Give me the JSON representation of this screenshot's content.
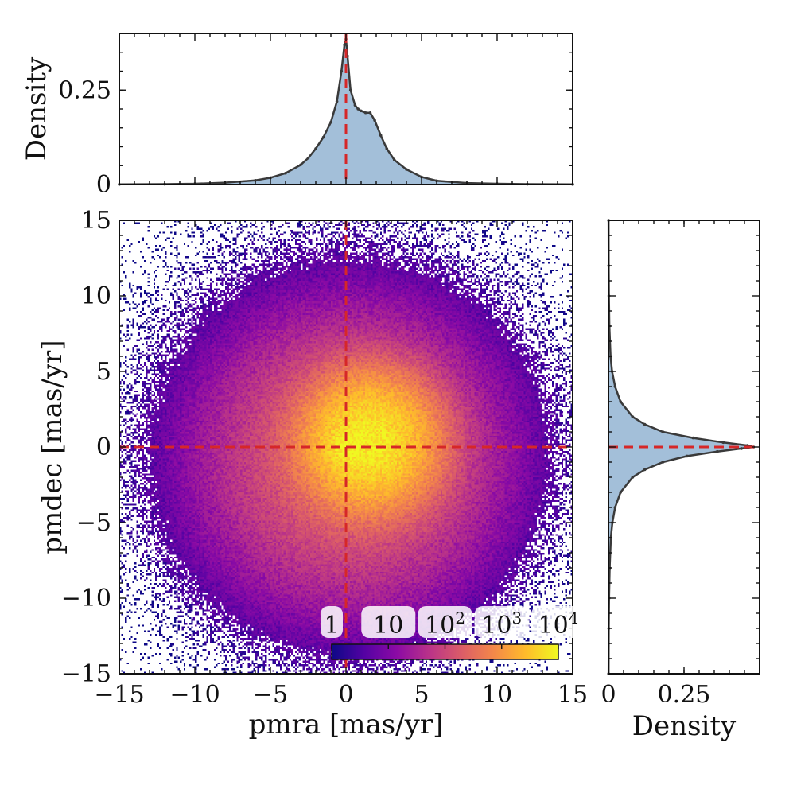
{
  "chart_data": [
    {
      "id": "joint",
      "type": "heatmap",
      "description_scale": "log-count 2D histogram",
      "xlabel": "pmra [mas/yr]",
      "ylabel": "pmdec [mas/yr]",
      "xlim": [
        -15,
        15
      ],
      "ylim": [
        -15,
        15
      ],
      "xticks": [
        -15,
        -10,
        -5,
        0,
        5,
        10,
        15
      ],
      "yticks": [
        -15,
        -10,
        -5,
        0,
        5,
        10,
        15
      ],
      "xtick_labels": [
        "−15",
        "−10",
        "−5",
        "0",
        "5",
        "10",
        "15"
      ],
      "ytick_labels": [
        "−15",
        "−10",
        "−5",
        "0",
        "5",
        "10",
        "15"
      ],
      "reference_lines": {
        "x": 0,
        "y": 0,
        "color": "#d62728"
      },
      "density_components": [
        {
          "center": [
            0,
            0
          ],
          "sigma": 0.6,
          "peak_log10": 3.6
        },
        {
          "center": [
            1.5,
            0.3
          ],
          "sigma": 2.0,
          "peak_log10": 3.9
        },
        {
          "center": [
            0.3,
            -0.8
          ],
          "sigma": 4.4,
          "peak_log10": 2.4
        },
        {
          "center": [
            0,
            0
          ],
          "sigma": 8.0,
          "peak_log10": 0.9
        }
      ],
      "colorbar": {
        "colormap": "plasma",
        "scale": "log",
        "range": [
          1,
          10000
        ],
        "tick_values": [
          1,
          10,
          100,
          1000,
          10000
        ],
        "tick_labels": [
          {
            "base": "1",
            "exp": ""
          },
          {
            "base": "10",
            "exp": ""
          },
          {
            "base": "10",
            "exp": "2"
          },
          {
            "base": "10",
            "exp": "3"
          },
          {
            "base": "10",
            "exp": "4"
          }
        ]
      },
      "colors": {
        "low": "#0d0887",
        "mid": "#cc4778",
        "high": "#f0f921"
      }
    },
    {
      "id": "top-marginal",
      "type": "area",
      "xlabel": "",
      "ylabel": "Density",
      "xlim": [
        -15,
        15
      ],
      "ylim": [
        0,
        0.4
      ],
      "yticks": [
        0,
        0.25
      ],
      "ytick_labels": [
        "0",
        "0.25"
      ],
      "x": [
        -15,
        -12,
        -10,
        -8,
        -6,
        -5,
        -4,
        -3,
        -2.5,
        -2,
        -1.5,
        -1,
        -0.6,
        -0.3,
        -0.1,
        0,
        0.1,
        0.3,
        0.6,
        0.8,
        1.0,
        1.3,
        1.6,
        1.9,
        2.3,
        2.7,
        3.2,
        4,
        5,
        6,
        8,
        10,
        12,
        15
      ],
      "values": [
        0.0005,
        0.001,
        0.002,
        0.005,
        0.011,
        0.018,
        0.03,
        0.052,
        0.07,
        0.095,
        0.125,
        0.165,
        0.22,
        0.3,
        0.37,
        0.385,
        0.34,
        0.25,
        0.21,
        0.2,
        0.195,
        0.19,
        0.19,
        0.17,
        0.13,
        0.095,
        0.065,
        0.04,
        0.02,
        0.01,
        0.004,
        0.002,
        0.001,
        0.0005
      ],
      "fill_color": "#a3bfd9",
      "line_color": "#3a3a3a",
      "reference_line_x": 0
    },
    {
      "id": "right-marginal",
      "type": "area",
      "orientation": "horizontal",
      "xlabel": "Density",
      "ylabel": "",
      "xlim": [
        0,
        0.5
      ],
      "ylim": [
        -15,
        15
      ],
      "xticks": [
        0,
        0.25
      ],
      "xtick_labels": [
        "0",
        "0.25"
      ],
      "y": [
        -15,
        -12,
        -10,
        -8,
        -6,
        -5,
        -4,
        -3,
        -2,
        -1.5,
        -1,
        -0.6,
        -0.3,
        -0.1,
        0,
        0.1,
        0.3,
        0.6,
        1,
        1.5,
        2,
        3,
        4,
        5,
        6,
        8,
        10,
        12,
        15
      ],
      "values": [
        0.0005,
        0.001,
        0.002,
        0.004,
        0.008,
        0.013,
        0.022,
        0.04,
        0.08,
        0.12,
        0.18,
        0.26,
        0.36,
        0.44,
        0.48,
        0.46,
        0.38,
        0.28,
        0.18,
        0.12,
        0.08,
        0.04,
        0.022,
        0.012,
        0.007,
        0.003,
        0.0015,
        0.0008,
        0.0004
      ],
      "fill_color": "#a3bfd9",
      "line_color": "#3a3a3a",
      "reference_line_y": 0
    }
  ]
}
